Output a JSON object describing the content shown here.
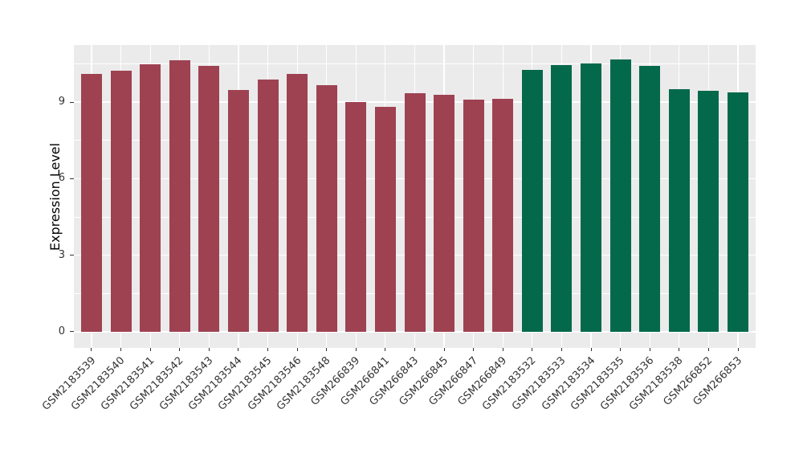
{
  "chart_data": {
    "type": "bar",
    "title": "",
    "xlabel": "",
    "ylabel": "Expression Level",
    "categories": [
      "GSM2183539",
      "GSM2183540",
      "GSM2183541",
      "GSM2183542",
      "GSM2183543",
      "GSM2183544",
      "GSM2183545",
      "GSM2183546",
      "GSM2183548",
      "GSM266839",
      "GSM266841",
      "GSM266843",
      "GSM266845",
      "GSM266847",
      "GSM266849",
      "GSM2183532",
      "GSM2183533",
      "GSM2183534",
      "GSM2183535",
      "GSM2183536",
      "GSM2183538",
      "GSM266852",
      "GSM266853"
    ],
    "values": [
      10.1,
      10.24,
      10.49,
      10.66,
      10.43,
      9.47,
      9.89,
      10.11,
      9.68,
      9.01,
      8.82,
      9.35,
      9.3,
      9.1,
      9.13,
      10.27,
      10.47,
      10.51,
      10.68,
      10.43,
      9.51,
      9.45,
      9.39
    ],
    "groups": [
      0,
      0,
      0,
      0,
      0,
      0,
      0,
      0,
      0,
      0,
      0,
      0,
      0,
      0,
      0,
      1,
      1,
      1,
      1,
      1,
      1,
      1,
      1
    ],
    "group_colors": [
      "#9E4252",
      "#04694B"
    ],
    "yticks": [
      0,
      3,
      6,
      9
    ],
    "ytick_labels": [
      "0",
      "3",
      "6",
      "9"
    ],
    "minor_gridlines": [
      1.5,
      4.5,
      7.5,
      10.5
    ],
    "ylim": [
      0,
      11.3
    ],
    "grid": "on",
    "legend_position": "none",
    "panel_background": "#EBEBEB",
    "grid_color": "#FFFFFF",
    "tick_label_color": "#333333",
    "axis_title_color": "#000000"
  }
}
